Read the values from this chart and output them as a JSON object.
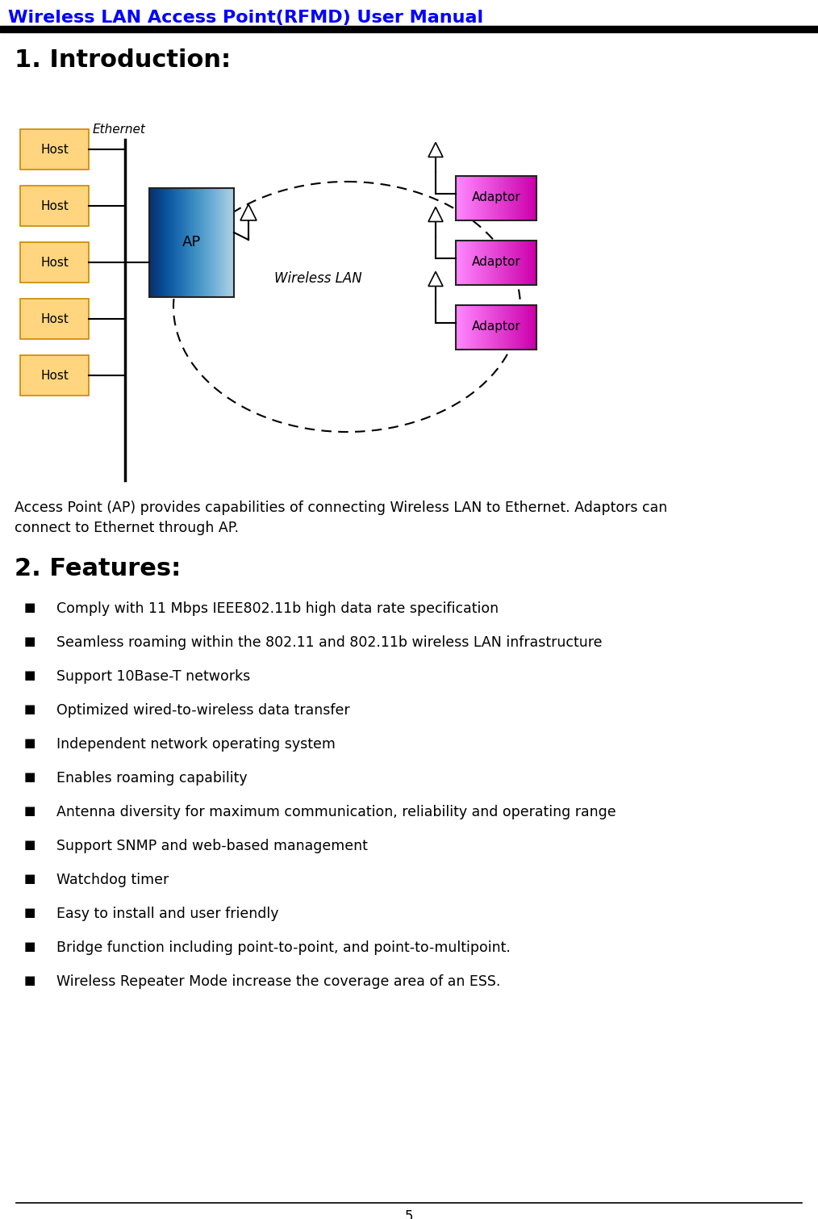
{
  "header_text": "Wireless LAN Access Point(RFMD) User Manual",
  "header_color": "#0000FF",
  "header_bg": "#000000",
  "section1_title": "1. Introduction:",
  "intro_text": "Access Point (AP) provides capabilities of connecting Wireless LAN to Ethernet. Adaptors can\nconnect to Ethernet through AP.",
  "section2_title": "2. Features:",
  "bullet_items": [
    "Comply with 11 Mbps IEEE802.11b high data rate specification",
    "Seamless roaming within the 802.11 and 802.11b wireless LAN infrastructure",
    "Support 10Base-T networks",
    "Optimized wired-to-wireless data transfer",
    "Independent network operating system",
    "Enables roaming capability",
    "Antenna diversity for maximum communication, reliability and operating range",
    "Support SNMP and web-based management",
    "Watchdog timer",
    "Easy to install and user friendly",
    "Bridge function including point-to-point, and point-to-multipoint.",
    "Wireless Repeater Mode increase the coverage area of an ESS."
  ],
  "footer_text": "5",
  "host_box_color": "#FFD580",
  "host_box_edge": "#FF8C00",
  "ap_box_color_left": "#4444FF",
  "ap_box_color_right": "#FFFFFF",
  "adaptor_color_left": "#FF88FF",
  "adaptor_color_right": "#CC00CC",
  "wireless_lan_label": "Wireless LAN",
  "ethernet_label": "Ethernet",
  "ap_label": "AP",
  "adaptor_label": "Adaptor",
  "host_label": "Host"
}
